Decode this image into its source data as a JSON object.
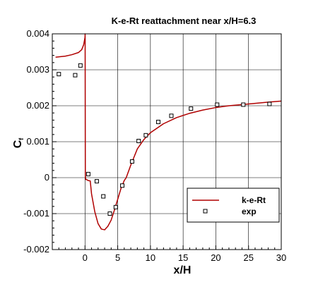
{
  "chart_data": {
    "type": "line",
    "title": "K-e-Rt reattachment near x/H=6.3",
    "xlabel": "x/H",
    "ylabel_main": "C",
    "ylabel_sub": "f",
    "xlim": [
      -5,
      30
    ],
    "ylim": [
      -0.002,
      0.004
    ],
    "xticks": [
      0,
      5,
      10,
      15,
      20,
      25,
      30
    ],
    "xtick_labels": [
      "0",
      "5",
      "10",
      "15",
      "20",
      "25",
      "30"
    ],
    "yticks": [
      -0.002,
      -0.001,
      0,
      0.001,
      0.002,
      0.003,
      0.004
    ],
    "ytick_labels": [
      "-0.002",
      "-0.001",
      "0",
      "0.001",
      "0.002",
      "0.003",
      "0.004"
    ],
    "grid": true,
    "legend_position": "bottom-right",
    "colors": {
      "line": "#b00000",
      "marker": "#000000",
      "grid": "#000000"
    },
    "series": [
      {
        "name": "k-e-Rt",
        "kind": "line",
        "x": [
          -4.5,
          -3,
          -2,
          -1,
          -0.5,
          -0.2,
          0,
          0.02,
          0.05,
          0.1,
          0.2,
          0.5,
          0.8,
          1,
          1.5,
          2,
          2.5,
          3,
          3.5,
          4,
          4.5,
          5,
          5.5,
          6,
          6.3,
          7,
          8,
          9,
          10,
          12,
          14,
          16,
          18,
          20,
          22,
          25,
          28,
          30
        ],
        "y": [
          0.00335,
          0.00338,
          0.00342,
          0.00348,
          0.00356,
          0.0037,
          0.0039,
          0.004,
          5e-05,
          -5e-05,
          -5e-05,
          -8e-05,
          -9e-05,
          -0.00045,
          -0.00095,
          -0.00128,
          -0.00143,
          -0.00145,
          -0.00135,
          -0.00118,
          -0.0009,
          -0.0006,
          -0.0003,
          -8e-05,
          0,
          0.00035,
          0.0008,
          0.00106,
          0.00125,
          0.0015,
          0.00167,
          0.00179,
          0.00188,
          0.00195,
          0.002,
          0.00205,
          0.0021,
          0.00213
        ]
      },
      {
        "name": "exp",
        "kind": "scatter",
        "x": [
          -4,
          -1.5,
          -0.7,
          0.5,
          1.8,
          2.8,
          3.8,
          4.7,
          5.7,
          7.2,
          8.2,
          9.3,
          11.2,
          13.2,
          16.2,
          20.2,
          24.2,
          28.2
        ],
        "y": [
          0.00288,
          0.00285,
          0.00312,
          0.0001,
          -0.0001,
          -0.00052,
          -0.001,
          -0.00082,
          -0.00022,
          0.00045,
          0.00102,
          0.00118,
          0.00155,
          0.00172,
          0.00192,
          0.00203,
          0.00203,
          0.00205
        ]
      }
    ]
  }
}
